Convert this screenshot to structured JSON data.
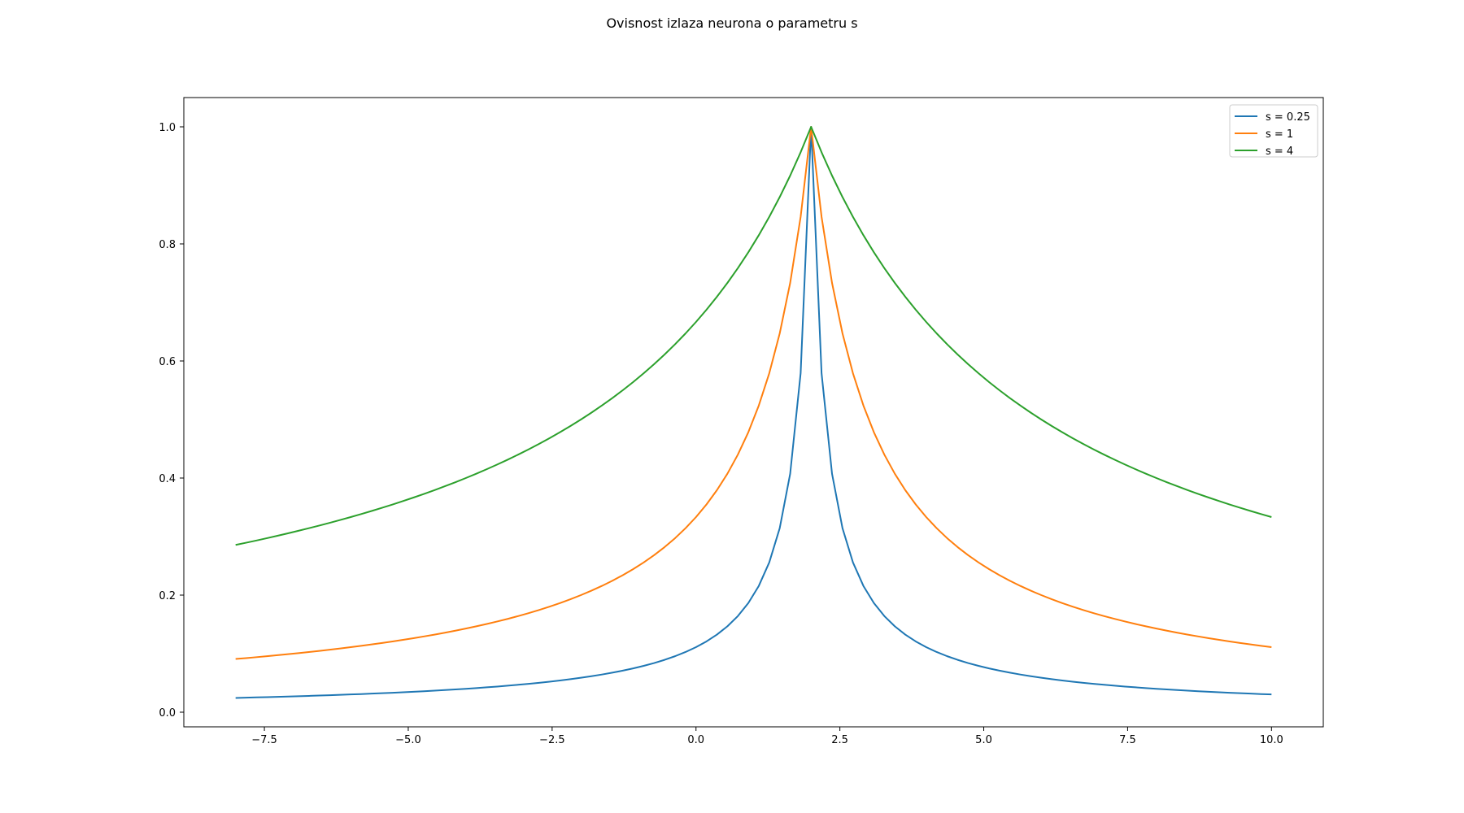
{
  "chart_data": {
    "type": "line",
    "title": "Ovisnost izlaza neurona o parametru s",
    "xlabel": "",
    "ylabel": "",
    "xlim": [
      -8.9,
      10.9
    ],
    "ylim": [
      -0.025,
      1.05
    ],
    "xticks": [
      -7.5,
      -5.0,
      -2.5,
      0.0,
      2.5,
      5.0,
      7.5,
      10.0
    ],
    "xtick_labels": [
      "−7.5",
      "−5.0",
      "−2.5",
      "0.0",
      "2.5",
      "5.0",
      "7.5",
      "10.0"
    ],
    "yticks": [
      0.0,
      0.2,
      0.4,
      0.6,
      0.8,
      1.0
    ],
    "ytick_labels": [
      "0.0",
      "0.2",
      "0.4",
      "0.6",
      "0.8",
      "1.0"
    ],
    "grid": false,
    "legend": {
      "placement": "upper-right"
    },
    "x_range": [
      -8,
      10
    ],
    "center": 2,
    "series": [
      {
        "name": "s = 0.25",
        "s": 0.25,
        "color": "#1f77b4"
      },
      {
        "name": "s = 1",
        "s": 1,
        "color": "#ff7f0e"
      },
      {
        "name": "s = 4",
        "s": 4,
        "color": "#2ca02c"
      }
    ]
  }
}
